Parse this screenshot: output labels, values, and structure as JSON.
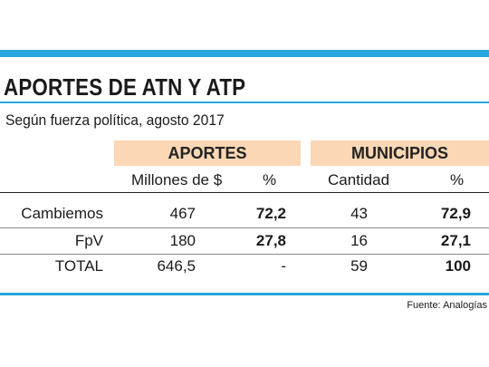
{
  "title": "APORTES DE ATN Y ATP",
  "subtitle": "Según fuerza política, agosto 2017",
  "groups": {
    "aportes": "APORTES",
    "municipios": "MUNICIPIOS"
  },
  "subheaders": {
    "millones": "Millones de $",
    "pct1": "%",
    "cantidad": "Cantidad",
    "pct2": "%"
  },
  "rows": [
    {
      "label": "Cambiemos",
      "millones": "467",
      "pct_aportes": "72,2",
      "cantidad": "43",
      "pct_municipios": "72,9"
    },
    {
      "label": "FpV",
      "millones": "180",
      "pct_aportes": "27,8",
      "cantidad": "16",
      "pct_municipios": "27,1"
    },
    {
      "label": "TOTAL",
      "millones": "646,5",
      "pct_aportes": "-",
      "cantidad": "59",
      "pct_municipios": "100"
    }
  ],
  "source": "Fuente: Analogías",
  "colors": {
    "accent_blue": "#29a8df",
    "header_band": "#fbd7b5"
  }
}
